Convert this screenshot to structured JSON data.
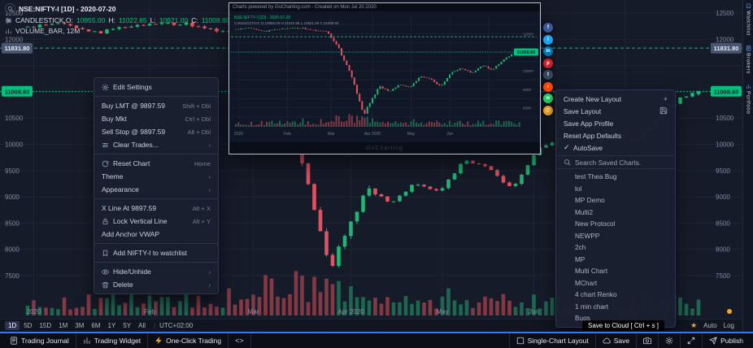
{
  "colors": {
    "up": "#21b573",
    "down": "#e15260",
    "vol_up": "#1e6f54",
    "vol_down": "#8e3d47",
    "level": "#00c07f",
    "grid": "#1e2536",
    "axis_text": "#7f8a9f",
    "badge_dark_bg": "#4a5671",
    "badge_dark_text": "#e8ecf5",
    "badge_green_bg": "#00c07f",
    "badge_green_text": "#072b1d",
    "accent": "#2e7bff"
  },
  "symbol_header": {
    "line1": "NSE:NIFTY-I [1D] - 2020-07-20",
    "series_label": "CANDLESTICK,O:",
    "o": "10955.00",
    "h_label": "H:",
    "h": "11022.65",
    "l_label": "L:",
    "l": "10921.00",
    "c_label": "C:",
    "c": "11008.60",
    "volume_label": "VOLUME_BAR, 12M"
  },
  "price_axis": {
    "labels": [
      12500,
      12000,
      10500,
      10000,
      9500,
      9000,
      8500,
      8000,
      7500
    ],
    "badge_dark": {
      "text": "11831.80",
      "price": 11831.8
    },
    "badge_green": {
      "text": "11008.60",
      "price": 11008.6
    }
  },
  "chart": {
    "seed": 13,
    "count": 111,
    "amp": 60,
    "wild": [
      38,
      56
    ],
    "anchors": [
      [
        0,
        12230
      ],
      [
        6,
        12320
      ],
      [
        12,
        12120
      ],
      [
        18,
        12280
      ],
      [
        26,
        12300
      ],
      [
        32,
        12150
      ],
      [
        36,
        12100
      ],
      [
        40,
        11300
      ],
      [
        44,
        10200
      ],
      [
        47,
        9000
      ],
      [
        50,
        7610
      ],
      [
        53,
        8400
      ],
      [
        56,
        9150
      ],
      [
        60,
        8900
      ],
      [
        64,
        9250
      ],
      [
        68,
        9100
      ],
      [
        72,
        9700
      ],
      [
        76,
        9550
      ],
      [
        80,
        9150
      ],
      [
        84,
        9900
      ],
      [
        88,
        10150
      ],
      [
        92,
        9850
      ],
      [
        96,
        10300
      ],
      [
        100,
        10050
      ],
      [
        104,
        10550
      ],
      [
        107,
        10850
      ],
      [
        110,
        11008
      ]
    ],
    "last": {
      "open": 10955.0,
      "high": 11022.65,
      "low": 10921.0,
      "close": 11008.6
    },
    "levels": [
      11831.8,
      11008.6
    ],
    "grid_prices": [
      12500,
      12000,
      11500,
      11000,
      10500,
      10000,
      9500,
      9000,
      8500,
      8000,
      7500
    ],
    "ticks": [
      {
        "label": "2020",
        "i": 1
      },
      {
        "label": "Feb",
        "i": 20
      },
      {
        "label": "Mar",
        "i": 37
      },
      {
        "label": "Apr 2020",
        "i": 53
      },
      {
        "label": "May",
        "i": 68
      },
      {
        "label": "Jun",
        "i": 83
      },
      {
        "label": "",
        "i": 98
      }
    ]
  },
  "context_menu": {
    "sections": [
      [
        {
          "label": "Edit Settings",
          "icon": "gear"
        }
      ],
      [
        {
          "label": "Buy LMT @ 9897.59",
          "right": "Shift + Dbl"
        },
        {
          "label": "Buy Mkt",
          "right": "Ctrl + Dbl"
        },
        {
          "label": "Sell Stop @ 9897.59",
          "right": "Alt + Dbl"
        },
        {
          "label": "Clear Trades...",
          "icon": "sliders",
          "right": "›"
        }
      ],
      [
        {
          "label": "Reset Chart",
          "icon": "reset",
          "right": "Home"
        },
        {
          "label": "Theme",
          "right": "›"
        },
        {
          "label": "Appearance",
          "right": "›"
        }
      ],
      [
        {
          "label": "X Line At 9897.59",
          "right": "Alt + X"
        },
        {
          "label": "Lock Vertical Line",
          "icon": "lock",
          "right": "Alt + Y"
        },
        {
          "label": "Add Anchor VWAP"
        }
      ],
      [
        {
          "label": "Add NIFTY-I to watchlist",
          "icon": "bookmark"
        }
      ],
      [
        {
          "label": "Hide/Unhide",
          "icon": "eye",
          "right": "›"
        },
        {
          "label": "Delete",
          "icon": "trash",
          "right": "›"
        }
      ]
    ]
  },
  "layout_menu": {
    "items": [
      {
        "label": "Create New Layout",
        "right_icon": "plus"
      },
      {
        "label": "Save Layout",
        "right_icon": "floppy"
      },
      {
        "label": "Save App Profile"
      },
      {
        "label": "Reset App Defaults"
      },
      {
        "label": "AutoSave",
        "left_icon": "check"
      }
    ],
    "search_placeholder": "Search Saved Charts.",
    "saved": [
      "test Thea Bug",
      "lol",
      "MP Demo",
      "Multi2",
      "New Protocol",
      "NEWPP",
      "2ch",
      "MP",
      "Multi Chart",
      "MChart",
      "4 chart Renko",
      "1 min chart",
      "Bugs"
    ]
  },
  "popup": {
    "title": "Charts powered by GoCharting.com - Created on Mon Jul 20 2020",
    "line1": "NSE:NIFTY-I [1D] - 2020-07-20",
    "line2": "CANDLESTICK O:10955.00 H:11022.65 L:10921.00 C:11008.60",
    "watermark": "GoCharting"
  },
  "share_icons": [
    {
      "name": "facebook",
      "color": "#3b5998",
      "glyph": "f"
    },
    {
      "name": "twitter",
      "color": "#1da1f2",
      "glyph": "t"
    },
    {
      "name": "linkedin",
      "color": "#0077b5",
      "glyph": "in"
    },
    {
      "name": "pinterest",
      "color": "#cb2027",
      "glyph": "p"
    },
    {
      "name": "tumblr",
      "color": "#35465c",
      "glyph": "t"
    },
    {
      "name": "reddit",
      "color": "#ff4500",
      "glyph": "r"
    },
    {
      "name": "whatsapp",
      "color": "#25d366",
      "glyph": "w"
    },
    {
      "name": "email",
      "color": "#f5a623",
      "glyph": "@"
    }
  ],
  "right_tabs": [
    {
      "label": "Watchlist",
      "icon": "bookmark"
    },
    {
      "label": "Brokers",
      "icon": "journal"
    },
    {
      "label": "Portfolio",
      "icon": "widget"
    }
  ],
  "timeframe_bar": {
    "buttons": [
      "1D",
      "5D",
      "15D",
      "1M",
      "3M",
      "6M",
      "1Y",
      "5Y",
      "All"
    ],
    "active": "1D",
    "timezone": "UTC+02:00",
    "right_items": [
      "Auto",
      "Log"
    ]
  },
  "footer": {
    "left": [
      {
        "icon": "journal",
        "label": "Trading Journal"
      },
      {
        "icon": "widget",
        "label": "Trading Widget"
      },
      {
        "icon": "lightning",
        "label": "One-Click Trading",
        "icon_color": "#f5a623"
      },
      {
        "icon": "code",
        "label": ""
      }
    ],
    "right": [
      {
        "icon": "layout",
        "label": "Single-Chart Layout"
      },
      {
        "icon": "cloud",
        "label": "Save"
      },
      {
        "icon": "camera",
        "label": ""
      },
      {
        "icon": "gear",
        "label": ""
      },
      {
        "icon": "expand",
        "label": ""
      },
      {
        "icon": "send",
        "label": "Publish"
      }
    ]
  },
  "tooltip": {
    "text": "Save to Cloud [ Ctrl + s ]"
  }
}
